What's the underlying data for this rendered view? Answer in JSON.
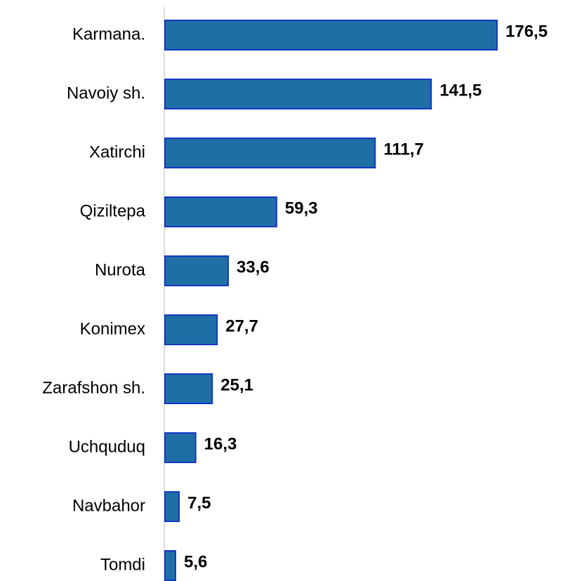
{
  "chart_data": {
    "type": "hbar",
    "categories": [
      "Karmana.",
      "Navoiy sh.",
      "Xatirchi",
      "Qiziltepa",
      "Nurota",
      "Konimex",
      "Zarafshon sh.",
      "Uchquduq",
      "Navbahor",
      "Tomdi"
    ],
    "values": [
      176.5,
      141.5,
      111.7,
      59.3,
      33.6,
      27.7,
      25.1,
      16.3,
      7.5,
      5.6
    ],
    "value_labels": [
      "176,5",
      "141,5",
      "111,7",
      "59,3",
      "33,6",
      "27,7",
      "25,1",
      "16,3",
      "7,5",
      "5,6"
    ],
    "color": "#1f6fa6",
    "xlim": [
      0,
      200
    ]
  }
}
